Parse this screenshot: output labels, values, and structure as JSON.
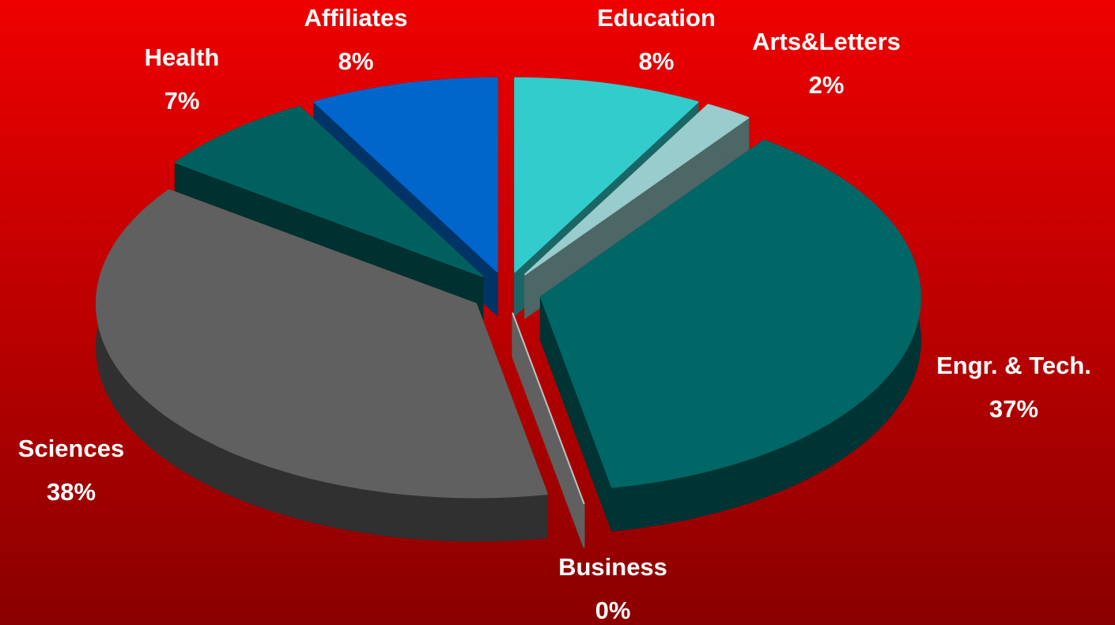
{
  "chart_data": {
    "type": "pie",
    "categories": [
      "Education",
      "Arts&Letters",
      "Engr. & Tech.",
      "Business",
      "Sciences",
      "Health",
      "Affiliates"
    ],
    "values": [
      8,
      2,
      37,
      0,
      38,
      7,
      8
    ],
    "value_labels": [
      "8%",
      "2%",
      "37%",
      "0%",
      "38%",
      "7%",
      "8%"
    ],
    "colors": [
      "#33cccc",
      "#99cccc",
      "#006666",
      "#c0c0c0",
      "#606060",
      "#006060",
      "#0066cc"
    ]
  }
}
